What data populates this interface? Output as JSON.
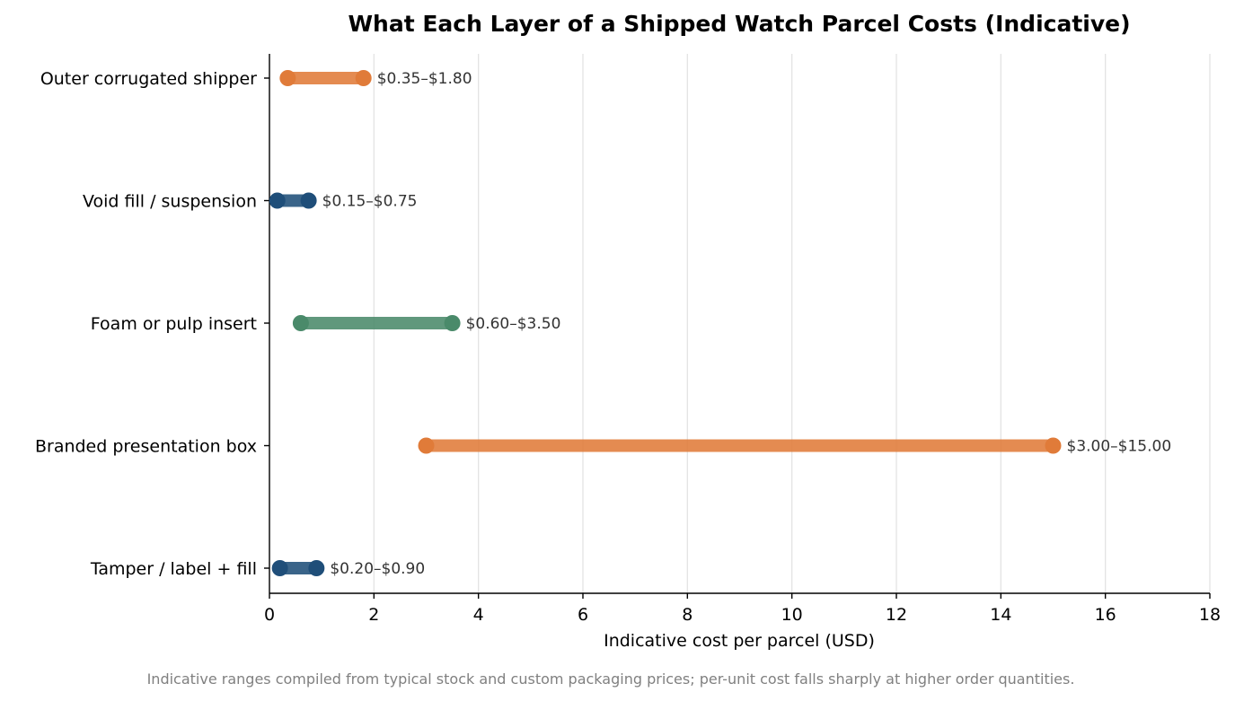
{
  "chart_data": {
    "type": "dumbbell",
    "title": "What Each Layer of a Shipped Watch Parcel Costs (Indicative)",
    "xlabel": "Indicative cost per parcel (USD)",
    "ylabel": "",
    "xlim": [
      0,
      18
    ],
    "xticks": [
      0,
      2,
      4,
      6,
      8,
      10,
      12,
      14,
      16,
      18
    ],
    "grid": "vertical",
    "categories": [
      "Outer corrugated shipper",
      "Void fill / suspension",
      "Foam or pulp insert",
      "Branded presentation box",
      "Tamper / label + fill"
    ],
    "series": [
      {
        "low": 0.35,
        "high": 1.8,
        "label": "$0.35–$1.80",
        "color": "#e07b39"
      },
      {
        "low": 0.15,
        "high": 0.75,
        "label": "$0.15–$0.75",
        "color": "#1f4e79"
      },
      {
        "low": 0.6,
        "high": 3.5,
        "label": "$0.60–$3.50",
        "color": "#4a8a6a"
      },
      {
        "low": 3.0,
        "high": 15.0,
        "label": "$3.00–$15.00",
        "color": "#e07b39"
      },
      {
        "low": 0.2,
        "high": 0.9,
        "label": "$0.20–$0.90",
        "color": "#1f4e79"
      }
    ]
  },
  "footnote": "Indicative ranges compiled from typical stock and custom packaging prices; per-unit cost falls sharply at higher order quantities."
}
